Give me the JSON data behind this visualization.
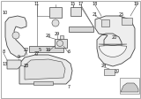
{
  "bg_color": "#ffffff",
  "border_color": "#bbbbbb",
  "line_color": "#444444",
  "label_color": "#111111",
  "fig_width": 1.6,
  "fig_height": 1.12,
  "dpi": 100
}
